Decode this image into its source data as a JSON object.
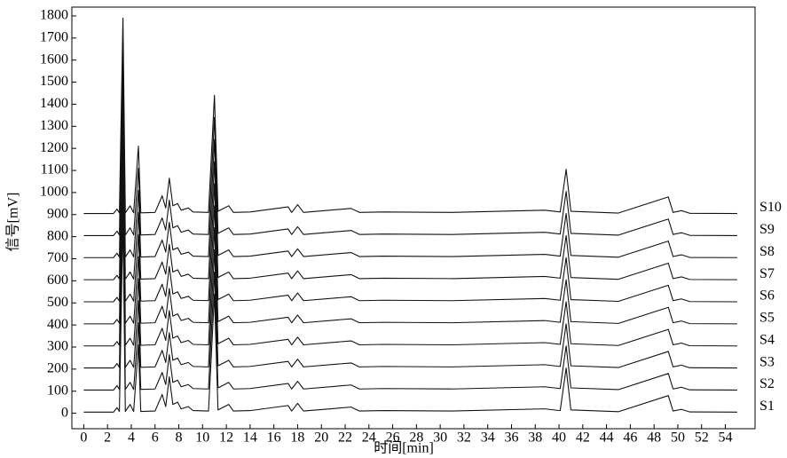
{
  "chart_data": {
    "type": "line",
    "x_label": "时间[min]",
    "y_label": "信号[mV]",
    "x": [
      0,
      2.5,
      2.8,
      3.0,
      3.3,
      3.5,
      3.9,
      4.2,
      4.6,
      4.8,
      6.0,
      6.6,
      6.9,
      7.2,
      7.5,
      7.9,
      8.2,
      8.8,
      9.2,
      10.5,
      11.0,
      11.3,
      12.2,
      12.6,
      14,
      17.2,
      17.5,
      18.0,
      18.5,
      22.5,
      23.2,
      25.2,
      31,
      38.8,
      40.1,
      40.6,
      41,
      45,
      49.2,
      49.6,
      50.3,
      51,
      55
    ],
    "series": [
      {
        "name": "S1",
        "color": "#000000",
        "values": [
          5,
          5,
          25,
          8,
          890,
          8,
          40,
          8,
          310,
          8,
          10,
          85,
          30,
          165,
          40,
          50,
          20,
          30,
          12,
          10,
          540,
          15,
          40,
          10,
          12,
          35,
          10,
          45,
          10,
          28,
          10,
          12,
          10,
          20,
          12,
          205,
          15,
          7,
          80,
          10,
          18,
          6,
          5
        ]
      },
      {
        "name": "S2",
        "color": "#222222",
        "values": [
          105,
          105,
          125,
          108,
          990,
          108,
          140,
          108,
          410,
          108,
          110,
          185,
          130,
          265,
          140,
          150,
          120,
          130,
          112,
          110,
          640,
          115,
          140,
          110,
          112,
          135,
          110,
          145,
          110,
          128,
          110,
          112,
          110,
          120,
          112,
          305,
          115,
          107,
          180,
          110,
          118,
          106,
          105
        ]
      },
      {
        "name": "S3",
        "color": "#222222",
        "values": [
          205,
          205,
          225,
          208,
          1090,
          208,
          240,
          208,
          510,
          208,
          210,
          285,
          230,
          365,
          240,
          250,
          220,
          230,
          212,
          210,
          740,
          215,
          240,
          210,
          212,
          235,
          210,
          245,
          210,
          228,
          210,
          212,
          210,
          220,
          212,
          405,
          215,
          207,
          280,
          210,
          218,
          206,
          205
        ]
      },
      {
        "name": "S4",
        "color": "#222222",
        "values": [
          305,
          305,
          325,
          308,
          1190,
          308,
          340,
          308,
          610,
          308,
          310,
          385,
          330,
          465,
          340,
          350,
          320,
          330,
          312,
          310,
          840,
          315,
          340,
          310,
          312,
          335,
          310,
          345,
          310,
          328,
          310,
          312,
          310,
          320,
          312,
          505,
          315,
          307,
          380,
          310,
          318,
          306,
          305
        ]
      },
      {
        "name": "S5",
        "color": "#222222",
        "values": [
          405,
          405,
          425,
          408,
          1290,
          408,
          440,
          408,
          710,
          408,
          410,
          485,
          430,
          565,
          440,
          450,
          420,
          430,
          412,
          410,
          940,
          415,
          440,
          410,
          412,
          435,
          410,
          445,
          410,
          428,
          410,
          412,
          410,
          420,
          412,
          605,
          415,
          407,
          480,
          410,
          418,
          406,
          405
        ]
      },
      {
        "name": "S6",
        "color": "#222222",
        "values": [
          505,
          505,
          525,
          508,
          1390,
          508,
          540,
          508,
          810,
          508,
          510,
          585,
          530,
          665,
          540,
          550,
          520,
          530,
          512,
          510,
          1040,
          515,
          540,
          510,
          512,
          535,
          510,
          545,
          510,
          528,
          510,
          512,
          510,
          520,
          512,
          705,
          515,
          507,
          580,
          510,
          518,
          506,
          505
        ]
      },
      {
        "name": "S7",
        "color": "#222222",
        "values": [
          605,
          605,
          625,
          608,
          1490,
          608,
          640,
          608,
          910,
          608,
          610,
          685,
          630,
          765,
          640,
          650,
          620,
          630,
          612,
          610,
          1140,
          615,
          640,
          610,
          612,
          635,
          610,
          645,
          610,
          628,
          610,
          612,
          610,
          620,
          612,
          805,
          615,
          607,
          680,
          610,
          618,
          606,
          605
        ]
      },
      {
        "name": "S8",
        "color": "#222222",
        "values": [
          705,
          705,
          725,
          708,
          1590,
          708,
          740,
          708,
          1010,
          708,
          710,
          785,
          730,
          865,
          740,
          750,
          720,
          730,
          712,
          710,
          1240,
          715,
          740,
          710,
          712,
          735,
          710,
          745,
          710,
          728,
          710,
          712,
          710,
          720,
          712,
          905,
          715,
          707,
          780,
          710,
          718,
          706,
          705
        ]
      },
      {
        "name": "S9",
        "color": "#222222",
        "values": [
          805,
          805,
          825,
          808,
          1690,
          808,
          840,
          808,
          1110,
          808,
          810,
          885,
          830,
          965,
          840,
          850,
          820,
          830,
          812,
          810,
          1340,
          815,
          840,
          810,
          812,
          835,
          810,
          845,
          810,
          828,
          810,
          812,
          810,
          820,
          812,
          1005,
          815,
          807,
          880,
          810,
          818,
          806,
          805
        ]
      },
      {
        "name": "S10",
        "color": "#222222",
        "values": [
          905,
          905,
          925,
          908,
          1790,
          908,
          940,
          908,
          1210,
          908,
          910,
          985,
          930,
          1065,
          940,
          950,
          920,
          930,
          912,
          910,
          1440,
          915,
          940,
          910,
          912,
          935,
          910,
          945,
          910,
          928,
          910,
          912,
          910,
          920,
          912,
          1105,
          915,
          907,
          980,
          910,
          918,
          906,
          905
        ]
      }
    ],
    "xlim": [
      -1,
      56.5
    ],
    "ylim": [
      -70,
      1840
    ],
    "xticks": [
      0,
      2,
      4,
      6,
      8,
      10,
      12,
      14,
      16,
      18,
      20,
      22,
      24,
      26,
      28,
      30,
      32,
      34,
      36,
      38,
      40,
      42,
      44,
      46,
      48,
      50,
      52,
      54
    ],
    "yticks": [
      0,
      100,
      200,
      300,
      400,
      500,
      600,
      700,
      800,
      900,
      1000,
      1100,
      1200,
      1300,
      1400,
      1500,
      1600,
      1700,
      1800
    ]
  }
}
